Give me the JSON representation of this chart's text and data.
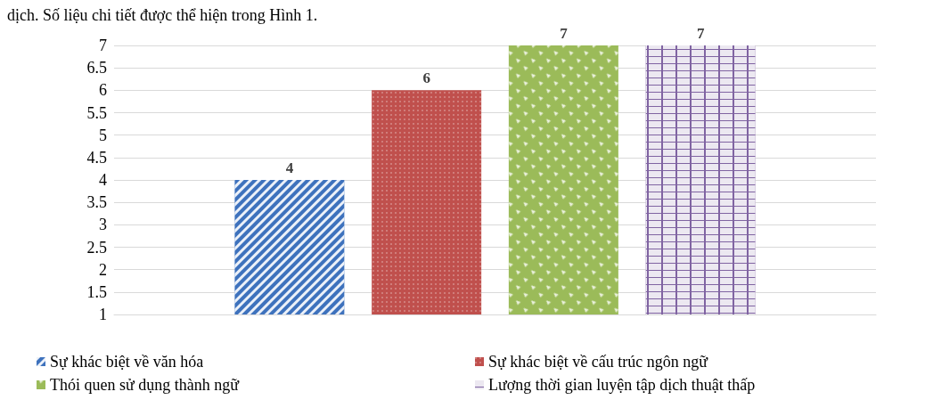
{
  "chart_data": {
    "type": "bar",
    "annotations": [
      "dịch. Số liệu chi tiết được thể hiện trong Hình 1."
    ],
    "categories": [
      null
    ],
    "series": [
      {
        "name": "Sự khác biệt về văn hóa",
        "color": "#3e72bd",
        "values": [
          4
        ]
      },
      {
        "name": "Sự khác biệt về cấu trúc ngôn ngữ",
        "color": "#c0504d",
        "values": [
          6
        ]
      },
      {
        "name": "Thói quen sử dụng thành ngữ",
        "color": "#9bbb59",
        "values": [
          7
        ]
      },
      {
        "name": "Lượng thời gian luyện tập dịch thuật thấp",
        "color": "#8064a2",
        "values": [
          7
        ]
      }
    ],
    "ylim": [
      1,
      7
    ],
    "yticks": [
      1,
      1.5,
      2,
      2.5,
      3,
      3.5,
      4,
      4.5,
      5,
      5.5,
      6,
      6.5,
      7
    ],
    "grid": "y",
    "legend": "bottom",
    "data_labels": true
  }
}
